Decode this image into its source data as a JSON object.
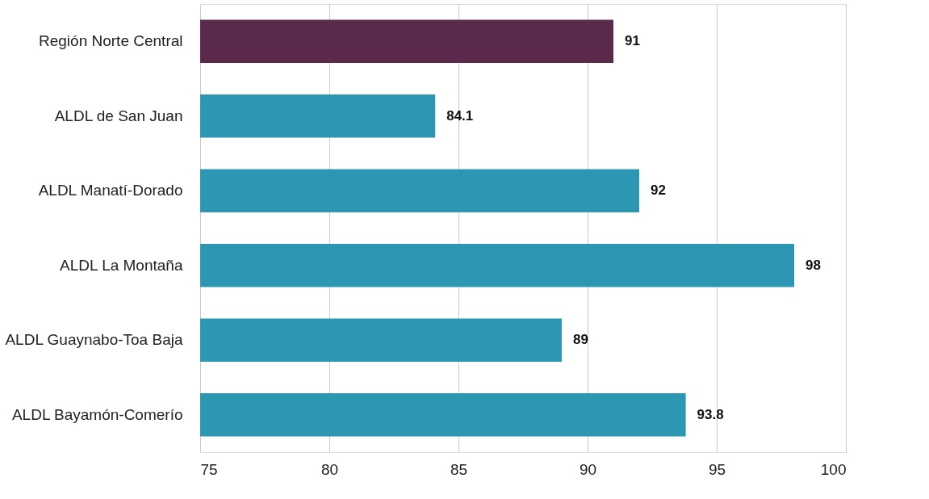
{
  "chart_data": {
    "type": "bar",
    "orientation": "horizontal",
    "categories": [
      "Región Norte Central",
      "ALDL de San Juan",
      "ALDL Manatí-Dorado",
      "ALDL La Montaña",
      "ALDL Guaynabo-Toa Baja",
      "ALDL  Bayamón-Comerío"
    ],
    "values": [
      91,
      84.1,
      92,
      98,
      89,
      93.8
    ],
    "colors": [
      "#5b2a4a",
      "#2b97b3",
      "#2b97b3",
      "#2b97b3",
      "#2b97b3",
      "#2b97b3"
    ],
    "xlim": [
      75,
      100
    ],
    "xticks": [
      75,
      80,
      85,
      90,
      95,
      100
    ],
    "grid": "x",
    "data_labels": true
  }
}
